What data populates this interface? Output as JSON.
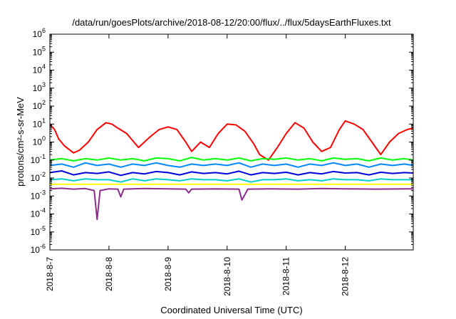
{
  "chart_data": {
    "type": "line",
    "title": "/data/run/goesPlots/archive/2018-08-12/20:00/flux/../flux/5daysEarthFluxes.txt",
    "xlabel": "Coordinated Universal Time (UTC)",
    "ylabel": "protons/cm²-s-sr-MeV",
    "yscale": "log",
    "ylim": [
      1e-06,
      1000000.0
    ],
    "xlim": [
      0,
      6.15
    ],
    "x_tick_values": [
      0,
      1,
      2,
      3,
      4,
      5
    ],
    "x_tick_labels": [
      "2018-8-7",
      "2018-8-8",
      "2018-8-9",
      "2018-8-10",
      "2018-8-11",
      "2018-8-12"
    ],
    "y_tick_exponents": [
      -6,
      -5,
      -4,
      -3,
      -2,
      -1,
      0,
      1,
      2,
      3,
      4,
      5,
      6
    ],
    "grid": false,
    "series": [
      {
        "color": "#ff0000",
        "x": [
          0,
          0.08,
          0.15,
          0.25,
          0.4,
          0.5,
          0.65,
          0.8,
          0.95,
          1.05,
          1.15,
          1.3,
          1.5,
          1.7,
          1.85,
          2.0,
          2.15,
          2.3,
          2.4,
          2.55,
          2.7,
          2.85,
          3.0,
          3.15,
          3.3,
          3.45,
          3.55,
          3.7,
          3.85,
          4.0,
          4.15,
          4.3,
          4.45,
          4.6,
          4.75,
          4.9,
          5.0,
          5.15,
          5.3,
          5.45,
          5.6,
          5.75,
          5.9,
          6.05,
          6.15
        ],
        "values": [
          10,
          5,
          1.5,
          0.6,
          0.25,
          0.35,
          1,
          5,
          12,
          10,
          6,
          3,
          0.5,
          2,
          5,
          7,
          5,
          1,
          0.3,
          1,
          0.5,
          3,
          10,
          9,
          4,
          0.8,
          0.2,
          0.1,
          0.5,
          3,
          12,
          6,
          1,
          0.3,
          0.5,
          5,
          15,
          10,
          5,
          1,
          0.2,
          1,
          3,
          5,
          6
        ]
      },
      {
        "color": "#00ff00",
        "x": [
          0,
          0.2,
          0.4,
          0.6,
          0.8,
          1.0,
          1.2,
          1.4,
          1.6,
          1.8,
          2.0,
          2.2,
          2.4,
          2.6,
          2.8,
          3.0,
          3.2,
          3.4,
          3.6,
          3.8,
          4.0,
          4.2,
          4.4,
          4.6,
          4.8,
          5.0,
          5.2,
          5.4,
          5.6,
          5.8,
          6.0,
          6.15
        ],
        "values": [
          0.1,
          0.12,
          0.09,
          0.12,
          0.1,
          0.13,
          0.1,
          0.12,
          0.09,
          0.13,
          0.12,
          0.09,
          0.14,
          0.1,
          0.12,
          0.1,
          0.13,
          0.09,
          0.12,
          0.11,
          0.13,
          0.1,
          0.12,
          0.09,
          0.13,
          0.11,
          0.12,
          0.09,
          0.13,
          0.1,
          0.12,
          0.1
        ]
      },
      {
        "color": "#0088ff",
        "x": [
          0,
          0.2,
          0.4,
          0.6,
          0.8,
          1.0,
          1.2,
          1.4,
          1.6,
          1.8,
          2.0,
          2.2,
          2.4,
          2.6,
          2.8,
          3.0,
          3.2,
          3.4,
          3.6,
          3.8,
          4.0,
          4.2,
          4.4,
          4.6,
          4.8,
          5.0,
          5.2,
          5.4,
          5.6,
          5.8,
          6.0,
          6.15
        ],
        "values": [
          0.05,
          0.06,
          0.04,
          0.07,
          0.05,
          0.06,
          0.04,
          0.06,
          0.05,
          0.07,
          0.05,
          0.04,
          0.06,
          0.05,
          0.06,
          0.05,
          0.07,
          0.04,
          0.06,
          0.05,
          0.06,
          0.04,
          0.06,
          0.05,
          0.07,
          0.05,
          0.06,
          0.04,
          0.06,
          0.05,
          0.06,
          0.05
        ]
      },
      {
        "color": "#0000dd",
        "x": [
          0,
          0.2,
          0.4,
          0.6,
          0.8,
          1.0,
          1.2,
          1.4,
          1.6,
          1.8,
          2.0,
          2.2,
          2.4,
          2.6,
          2.8,
          3.0,
          3.2,
          3.4,
          3.6,
          3.8,
          4.0,
          4.2,
          4.4,
          4.6,
          4.8,
          5.0,
          5.2,
          5.4,
          5.6,
          5.8,
          6.0,
          6.15
        ],
        "values": [
          0.02,
          0.025,
          0.015,
          0.02,
          0.018,
          0.022,
          0.014,
          0.02,
          0.017,
          0.023,
          0.02,
          0.015,
          0.022,
          0.018,
          0.02,
          0.017,
          0.024,
          0.015,
          0.02,
          0.018,
          0.021,
          0.015,
          0.02,
          0.017,
          0.023,
          0.019,
          0.02,
          0.015,
          0.021,
          0.018,
          0.02,
          0.019
        ]
      },
      {
        "color": "#00cccc",
        "x": [
          0,
          0.2,
          0.4,
          0.6,
          0.8,
          1.0,
          1.2,
          1.4,
          1.6,
          1.8,
          2.0,
          2.2,
          2.4,
          2.6,
          2.8,
          3.0,
          3.2,
          3.4,
          3.6,
          3.8,
          4.0,
          4.2,
          4.4,
          4.6,
          4.8,
          5.0,
          5.2,
          5.4,
          5.6,
          5.8,
          6.0,
          6.15
        ],
        "values": [
          0.008,
          0.009,
          0.007,
          0.009,
          0.008,
          0.008,
          0.006,
          0.009,
          0.007,
          0.009,
          0.008,
          0.007,
          0.009,
          0.008,
          0.008,
          0.007,
          0.009,
          0.006,
          0.008,
          0.008,
          0.009,
          0.007,
          0.008,
          0.007,
          0.009,
          0.008,
          0.008,
          0.007,
          0.009,
          0.008,
          0.008,
          0.008
        ]
      },
      {
        "color": "#ffff00",
        "x": [
          0,
          0.5,
          1.0,
          1.5,
          2.0,
          2.5,
          3.0,
          3.5,
          4.0,
          4.5,
          5.0,
          5.5,
          6.0,
          6.15
        ],
        "values": [
          0.0045,
          0.0045,
          0.0045,
          0.0045,
          0.0045,
          0.0045,
          0.0045,
          0.0045,
          0.0045,
          0.0045,
          0.0045,
          0.0045,
          0.0045,
          0.0045
        ]
      },
      {
        "color": "#8b2d8b",
        "x": [
          0,
          0.2,
          0.4,
          0.6,
          0.75,
          0.8,
          0.85,
          1.0,
          1.15,
          1.2,
          1.25,
          1.6,
          2.0,
          2.3,
          2.35,
          2.4,
          2.8,
          3.2,
          3.25,
          3.3,
          3.35,
          3.7,
          4.2,
          4.6,
          5.0,
          5.5,
          6.0,
          6.15
        ],
        "values": [
          0.0025,
          0.0027,
          0.0024,
          0.0026,
          0.002,
          5e-05,
          0.002,
          0.0025,
          0.0024,
          0.0009,
          0.0024,
          0.0026,
          0.0025,
          0.0024,
          0.0015,
          0.0024,
          0.0025,
          0.0024,
          0.0006,
          0.0012,
          0.0024,
          0.0025,
          0.0024,
          0.0026,
          0.0025,
          0.0024,
          0.0025,
          0.0025
        ]
      }
    ]
  }
}
